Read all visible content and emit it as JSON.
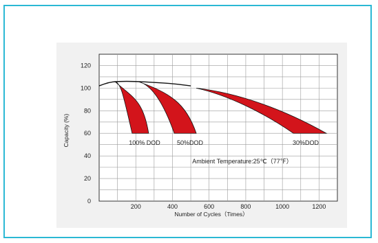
{
  "chart_data": {
    "type": "area",
    "xlabel": "Number of Cycles（Times）",
    "ylabel": "Capacity (%)",
    "xlim": [
      0,
      1300
    ],
    "ylim": [
      0,
      130
    ],
    "x_ticks": [
      200,
      400,
      600,
      800,
      1000,
      1200
    ],
    "y_ticks": [
      0,
      20,
      40,
      60,
      80,
      100,
      120
    ],
    "grid": true,
    "base_curve": {
      "x": [
        0,
        50,
        100,
        200,
        300,
        400,
        500
      ],
      "y": [
        102,
        105,
        106,
        106,
        105,
        104,
        102
      ]
    },
    "series": [
      {
        "name": "100% DOD",
        "start": [
          85,
          106
        ],
        "end_low": 180,
        "end_high": 270,
        "end_y": 60
      },
      {
        "name": "50%DOD",
        "start": [
          210,
          106
        ],
        "end_low": 410,
        "end_high": 530,
        "end_y": 60
      },
      {
        "name": "30%DOD",
        "start": [
          530,
          100
        ],
        "end_low": 1060,
        "end_high": 1240,
        "end_y": 60
      }
    ],
    "annotations": [
      "100% DOD",
      "50%DOD",
      "30%DOD",
      "Ambient Temperature:25℃（77℉）"
    ],
    "colors": {
      "fill": "#d3141b",
      "outline": "#111111",
      "grid": "#9a9a9a",
      "panel": "#f1f1f1",
      "frame": "#2ab8d4"
    }
  }
}
